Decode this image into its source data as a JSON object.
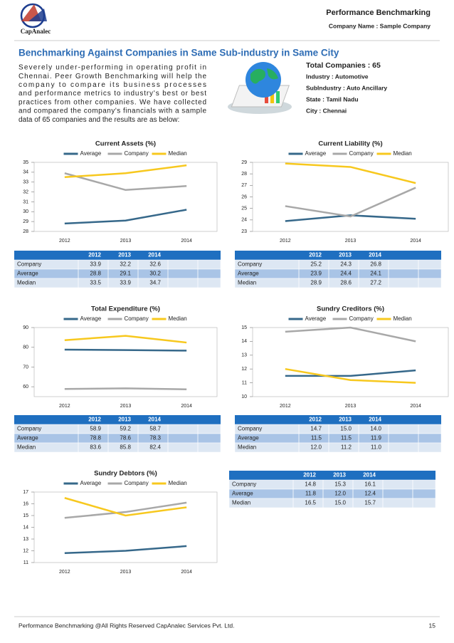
{
  "header": {
    "logo": "CapAnalec",
    "title": "Performance Benchmarking",
    "company": "Company Name : Sample Company"
  },
  "heading": "Benchmarking Against Companies in Same Sub-industry in Same City",
  "intro": [
    "Severely under-performing in operating profit in",
    "Chennai. Peer Growth Benchmarking will help the",
    "company to compare its business processes",
    "and performance metrics to industry's best or best",
    "practices from other companies. We have collected",
    "and compared the company's financials with a sample",
    "data of 65 companies and the results are as below:"
  ],
  "info": {
    "total": "Total Companies : 65",
    "items": [
      "Industry : Automotive",
      "SubIndustry : Auto Ancillary",
      "State : Tamil Nadu",
      "City : Chennai"
    ]
  },
  "chart_data": [
    {
      "type": "line",
      "title": "Current Assets (%)",
      "categories": [
        "2012",
        "2013",
        "2014"
      ],
      "series": [
        {
          "name": "Average",
          "color": "#36688a",
          "values": [
            28.8,
            29.1,
            30.2
          ]
        },
        {
          "name": "Company",
          "color": "#a8a8a8",
          "values": [
            33.9,
            32.2,
            32.6
          ]
        },
        {
          "name": "Median",
          "color": "#f7c81e",
          "values": [
            33.5,
            33.9,
            34.7
          ]
        }
      ],
      "ylim": [
        28,
        35
      ],
      "yticks": [
        28,
        29,
        30,
        31,
        32,
        33,
        34,
        35
      ]
    },
    {
      "type": "line",
      "title": "Current Liability (%)",
      "categories": [
        "2012",
        "2013",
        "2014"
      ],
      "series": [
        {
          "name": "Average",
          "color": "#36688a",
          "values": [
            23.9,
            24.4,
            24.1
          ]
        },
        {
          "name": "Company",
          "color": "#a8a8a8",
          "values": [
            25.2,
            24.3,
            26.8
          ]
        },
        {
          "name": "Median",
          "color": "#f7c81e",
          "values": [
            28.9,
            28.6,
            27.2
          ]
        }
      ],
      "ylim": [
        23,
        29
      ],
      "yticks": [
        23,
        24,
        25,
        26,
        27,
        28,
        29
      ]
    },
    {
      "type": "line",
      "title": "Total Expenditure (%)",
      "categories": [
        "2012",
        "2013",
        "2014"
      ],
      "series": [
        {
          "name": "Average",
          "color": "#36688a",
          "values": [
            78.8,
            78.6,
            78.3
          ]
        },
        {
          "name": "Company",
          "color": "#a8a8a8",
          "values": [
            58.9,
            59.2,
            58.7
          ]
        },
        {
          "name": "Median",
          "color": "#f7c81e",
          "values": [
            83.6,
            85.8,
            82.4
          ]
        }
      ],
      "ylim": [
        55,
        90
      ],
      "yticks": [
        60,
        70,
        80,
        90
      ]
    },
    {
      "type": "line",
      "title": "Sundry Creditors (%)",
      "categories": [
        "2012",
        "2013",
        "2014"
      ],
      "series": [
        {
          "name": "Average",
          "color": "#36688a",
          "values": [
            11.5,
            11.5,
            11.9
          ]
        },
        {
          "name": "Company",
          "color": "#a8a8a8",
          "values": [
            14.7,
            15.0,
            14.0
          ]
        },
        {
          "name": "Median",
          "color": "#f7c81e",
          "values": [
            12.0,
            11.2,
            11.0
          ]
        }
      ],
      "ylim": [
        10,
        15
      ],
      "yticks": [
        10,
        11,
        12,
        13,
        14,
        15
      ]
    },
    {
      "type": "line",
      "title": "Sundry Debtors (%)",
      "categories": [
        "2012",
        "2013",
        "2014"
      ],
      "series": [
        {
          "name": "Average",
          "color": "#36688a",
          "values": [
            11.8,
            12.0,
            12.4
          ]
        },
        {
          "name": "Company",
          "color": "#a8a8a8",
          "values": [
            14.8,
            15.3,
            16.1
          ]
        },
        {
          "name": "Median",
          "color": "#f7c81e",
          "values": [
            16.5,
            15.0,
            15.7
          ]
        }
      ],
      "ylim": [
        11,
        17
      ],
      "yticks": [
        11,
        12,
        13,
        14,
        15,
        16,
        17
      ]
    }
  ],
  "tables": [
    {
      "header": [
        "2012",
        "2013",
        "2014"
      ],
      "rows": [
        [
          "Company",
          "33.9",
          "32.2",
          "32.6"
        ],
        [
          "Average",
          "28.8",
          "29.1",
          "30.2"
        ],
        [
          "Median",
          "33.5",
          "33.9",
          "34.7"
        ]
      ]
    },
    {
      "header": [
        "2012",
        "2013",
        "2014"
      ],
      "rows": [
        [
          "Company",
          "25.2",
          "24.3",
          "26.8"
        ],
        [
          "Average",
          "23.9",
          "24.4",
          "24.1"
        ],
        [
          "Median",
          "28.9",
          "28.6",
          "27.2"
        ]
      ]
    },
    {
      "header": [
        "2012",
        "2013",
        "2014"
      ],
      "rows": [
        [
          "Company",
          "58.9",
          "59.2",
          "58.7"
        ],
        [
          "Average",
          "78.8",
          "78.6",
          "78.3"
        ],
        [
          "Median",
          "83.6",
          "85.8",
          "82.4"
        ]
      ]
    },
    {
      "header": [
        "2012",
        "2013",
        "2014"
      ],
      "rows": [
        [
          "Company",
          "14.7",
          "15.0",
          "14.0"
        ],
        [
          "Average",
          "11.5",
          "11.5",
          "11.9"
        ],
        [
          "Median",
          "12.0",
          "11.2",
          "11.0"
        ]
      ]
    },
    {
      "header": [
        "2012",
        "2013",
        "2014"
      ],
      "rows": [
        [
          "Company",
          "14.8",
          "15.3",
          "16.1"
        ],
        [
          "Average",
          "11.8",
          "12.0",
          "12.4"
        ],
        [
          "Median",
          "16.5",
          "15.0",
          "15.7"
        ]
      ]
    }
  ],
  "footer": {
    "text": "Performance Benchmarking @All Rights Reserved CapAnalec Services Pvt. Ltd.",
    "page": "15"
  }
}
